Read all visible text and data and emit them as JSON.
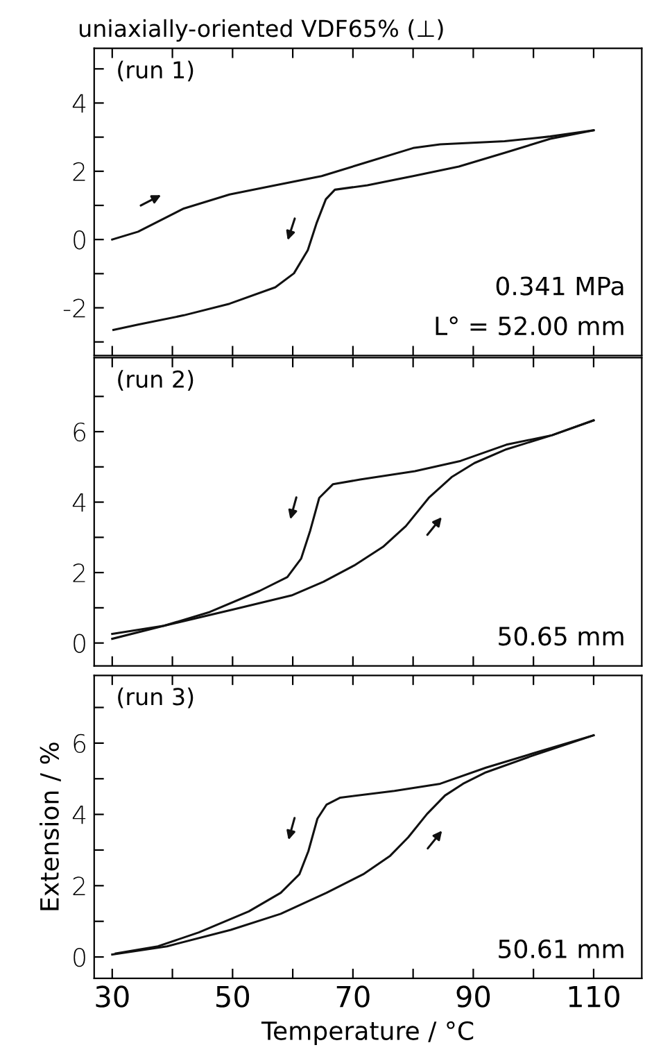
{
  "chart_data": [
    {
      "type": "line",
      "title": "uniaxially-oriented VDF65% (⊥)",
      "xlim": [
        27,
        118
      ],
      "ylim": [
        -3.4,
        5.6
      ],
      "tick_labels": "y",
      "grid": false,
      "legend": false,
      "marker": "none",
      "line_style": "solid",
      "xticks": [
        {
          "value": 30,
          "label": null
        },
        {
          "value": 40,
          "label": null
        },
        {
          "value": 50,
          "label": null
        },
        {
          "value": 60,
          "label": null
        },
        {
          "value": 70,
          "label": null
        },
        {
          "value": 80,
          "label": null
        },
        {
          "value": 90,
          "label": null
        },
        {
          "value": 100,
          "label": null
        },
        {
          "value": 110,
          "label": null
        }
      ],
      "yticks": [
        {
          "value": -3,
          "label": null
        },
        -2,
        {
          "value": -1,
          "label": null
        },
        0,
        {
          "value": 1,
          "label": null
        },
        2,
        {
          "value": 3,
          "label": null
        },
        4,
        {
          "value": 5,
          "label": null
        }
      ],
      "annotations": [
        "(run 1)",
        "0.341 MPa",
        "L° = 52.00 mm"
      ],
      "series": [
        {
          "color": "#111111",
          "x": [
            30,
            34.3,
            41.9,
            49.5,
            57.1,
            64.8,
            72.4,
            80,
            84.5,
            95.2,
            102.8,
            110
          ],
          "values": [
            0,
            0.23,
            0.91,
            1.32,
            1.59,
            1.86,
            2.27,
            2.68,
            2.79,
            2.88,
            3.02,
            3.2
          ]
        },
        {
          "color": "#111111",
          "x": [
            110,
            102.8,
            95.2,
            87.6,
            80,
            72.4,
            67,
            65.5,
            64,
            62.5,
            60.2,
            57.1,
            49.5,
            41.9,
            34.3,
            30.2
          ],
          "values": [
            3.2,
            2.95,
            2.54,
            2.14,
            1.86,
            1.59,
            1.46,
            1.18,
            0.5,
            -0.31,
            -0.99,
            -1.4,
            -1.88,
            -2.22,
            -2.49,
            -2.65
          ]
        }
      ]
    },
    {
      "type": "line",
      "xlim": [
        27,
        118
      ],
      "ylim": [
        -0.65,
        8.1
      ],
      "tick_labels": "y",
      "grid": false,
      "legend": false,
      "marker": "none",
      "line_style": "solid",
      "xticks": [
        {
          "value": 30,
          "label": null
        },
        {
          "value": 40,
          "label": null
        },
        {
          "value": 50,
          "label": null
        },
        {
          "value": 60,
          "label": null
        },
        {
          "value": 70,
          "label": null
        },
        {
          "value": 80,
          "label": null
        },
        {
          "value": 90,
          "label": null
        },
        {
          "value": 100,
          "label": null
        },
        {
          "value": 110,
          "label": null
        }
      ],
      "yticks": [
        0,
        {
          "value": 1,
          "label": null
        },
        2,
        {
          "value": 3,
          "label": null
        },
        4,
        {
          "value": 5,
          "label": null
        },
        6,
        {
          "value": 7,
          "label": null
        }
      ],
      "annotations": [
        "(run 2)",
        "50.65 mm"
      ],
      "series": [
        {
          "color": "#111111",
          "x": [
            30,
            38.6,
            50,
            59.8,
            65.1,
            70.2,
            75,
            78.8,
            82.6,
            86.4,
            90.2,
            95.5,
            103.1,
            110
          ],
          "values": [
            0.12,
            0.49,
            0.95,
            1.35,
            1.74,
            2.2,
            2.73,
            3.32,
            4.12,
            4.71,
            5.11,
            5.5,
            5.9,
            6.32
          ]
        },
        {
          "color": "#111111",
          "x": [
            110,
            103.1,
            95.5,
            87.9,
            80.3,
            71.2,
            66.7,
            64.4,
            62.9,
            61.4,
            59.1,
            54.5,
            46.2,
            38.6,
            30
          ],
          "values": [
            6.32,
            5.9,
            5.63,
            5.17,
            4.88,
            4.64,
            4.51,
            4.12,
            3.19,
            2.4,
            1.87,
            1.48,
            0.88,
            0.49,
            0.26
          ]
        }
      ]
    },
    {
      "type": "line",
      "xlabel": "Temperature / °C",
      "ylabel": "Extension / %",
      "xlim": [
        27,
        118
      ],
      "ylim": [
        -0.6,
        7.9
      ],
      "grid": false,
      "legend": false,
      "marker": "none",
      "line_style": "solid",
      "xticks": [
        30,
        {
          "value": 40,
          "label": null
        },
        50,
        {
          "value": 60,
          "label": null
        },
        70,
        {
          "value": 80,
          "label": null
        },
        90,
        {
          "value": 100,
          "label": null
        },
        110
      ],
      "yticks": [
        0,
        {
          "value": 1,
          "label": null
        },
        2,
        {
          "value": 3,
          "label": null
        },
        4,
        {
          "value": 5,
          "label": null
        },
        6,
        {
          "value": 7,
          "label": null
        }
      ],
      "annotations": [
        "(run 3)",
        "50.61 mm"
      ],
      "series": [
        {
          "color": "#111111",
          "x": [
            30,
            39.1,
            49.7,
            58,
            65.6,
            71.7,
            76.2,
            79.2,
            82.3,
            85.3,
            88.3,
            92.1,
            99.7,
            110
          ],
          "values": [
            0.07,
            0.3,
            0.76,
            1.21,
            1.8,
            2.32,
            2.84,
            3.36,
            4.01,
            4.53,
            4.86,
            5.18,
            5.64,
            6.22
          ]
        },
        {
          "color": "#111111",
          "x": [
            110,
            99.7,
            92.1,
            84.5,
            76.9,
            67.9,
            65.6,
            64.1,
            62.6,
            61.1,
            58,
            52.7,
            44.4,
            37.6,
            30.6
          ],
          "values": [
            6.22,
            5.7,
            5.31,
            4.86,
            4.66,
            4.47,
            4.27,
            3.88,
            2.97,
            2.32,
            1.8,
            1.28,
            0.69,
            0.3,
            0.1
          ]
        }
      ]
    }
  ]
}
